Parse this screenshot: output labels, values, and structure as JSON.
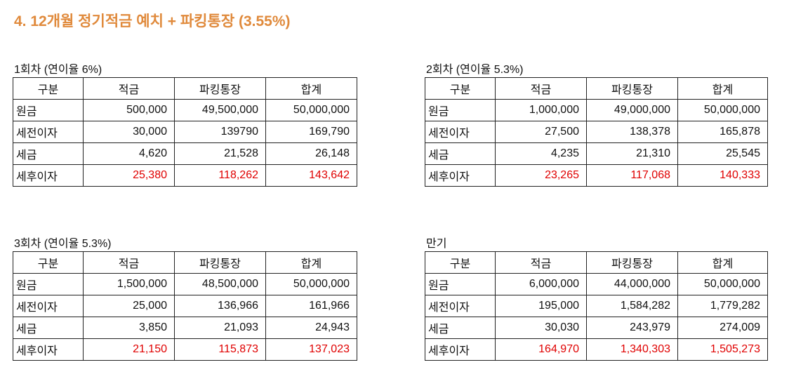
{
  "header": {
    "title": "4. 12개월 정기적금 예치 + 파킹통장 (3.55%)"
  },
  "tables": [
    {
      "caption": "1회차 (연이율 6%)",
      "header": [
        "구분",
        "적금",
        "파킹통장",
        "합계"
      ],
      "rows": [
        [
          "원금",
          "500,000",
          "49,500,000",
          "50,000,000"
        ],
        [
          "세전이자",
          "30,000",
          "139790",
          "169,790"
        ],
        [
          "세금",
          "4,620",
          "21,528",
          "26,148"
        ],
        [
          "세후이자",
          "25,380",
          "118,262",
          "143,642"
        ]
      ]
    },
    {
      "caption": "2회차 (연이율 5.3%)",
      "header": [
        "구분",
        "적금",
        "파킹통장",
        "합계"
      ],
      "rows": [
        [
          "원금",
          "1,000,000",
          "49,000,000",
          "50,000,000"
        ],
        [
          "세전이자",
          "27,500",
          "138,378",
          "165,878"
        ],
        [
          "세금",
          "4,235",
          "21,310",
          "25,545"
        ],
        [
          "세후이자",
          "23,265",
          "117,068",
          "140,333"
        ]
      ]
    },
    {
      "caption": "3회차 (연이율 5.3%)",
      "header": [
        "구분",
        "적금",
        "파킹통장",
        "합계"
      ],
      "rows": [
        [
          "원금",
          "1,500,000",
          "48,500,000",
          "50,000,000"
        ],
        [
          "세전이자",
          "25,000",
          "136,966",
          "161,966"
        ],
        [
          "세금",
          "3,850",
          "21,093",
          "24,943"
        ],
        [
          "세후이자",
          "21,150",
          "115,873",
          "137,023"
        ]
      ]
    },
    {
      "caption": "만기",
      "header": [
        "구분",
        "적금",
        "파킹통장",
        "합계"
      ],
      "rows": [
        [
          "원금",
          "6,000,000",
          "44,000,000",
          "50,000,000"
        ],
        [
          "세전이자",
          "195,000",
          "1,584,282",
          "1,779,282"
        ],
        [
          "세금",
          "30,030",
          "243,979",
          "274,009"
        ],
        [
          "세후이자",
          "164,970",
          "1,340,303",
          "1,505,273"
        ]
      ]
    }
  ]
}
